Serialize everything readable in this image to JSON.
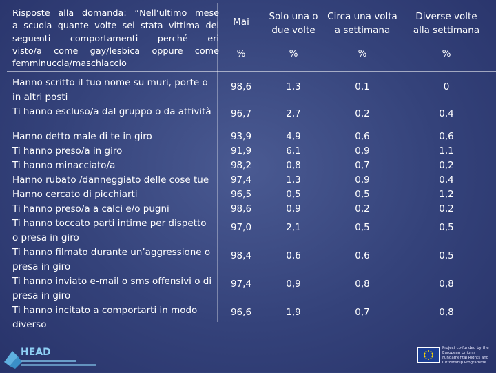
{
  "header": {
    "question": "Risposte alla domanda: “Nell’ultimo mese a scuola quante volte sei stata vittima dei seguenti comportamenti perché eri visto/a come gay/lesbica oppure come femminuccia/maschiaccio",
    "question_lines": [
      "Risposte alla domanda: “Nell’ultimo mese",
      "a scuola quante volte sei stata vittima dei",
      "seguenti comportamenti perché eri",
      "visto/a come gay/lesbica oppure come",
      "femminuccia/maschiaccio"
    ],
    "columns": [
      {
        "label_lines": [
          "Mai"
        ],
        "unit": "%"
      },
      {
        "label_lines": [
          "Solo una o",
          "due volte"
        ],
        "unit": "%"
      },
      {
        "label_lines": [
          "Circa una volta",
          "a settimana"
        ],
        "unit": "%"
      },
      {
        "label_lines": [
          "Diverse volte",
          "alla settimana"
        ],
        "unit": "%"
      }
    ]
  },
  "group1": {
    "rows": [
      {
        "label_lines": [
          "Hanno scritto il tuo nome su muri, porte o",
          "in altri posti"
        ],
        "values": [
          "98,6",
          "1,3",
          "0,1",
          "0"
        ]
      },
      {
        "label_lines": [
          "Ti hanno escluso/a dal gruppo o da attività"
        ],
        "values": [
          "96,7",
          "2,7",
          "0,2",
          "0,4"
        ]
      }
    ]
  },
  "group2": {
    "rows": [
      {
        "label_lines": [
          "Hanno detto male di te in giro"
        ],
        "values": [
          "93,9",
          "4,9",
          "0,6",
          "0,6"
        ]
      },
      {
        "label_lines": [
          "Ti hanno preso/a in giro"
        ],
        "values": [
          "91,9",
          "6,1",
          "0,9",
          "1,1"
        ]
      },
      {
        "label_lines": [
          "Ti hanno minacciato/a"
        ],
        "values": [
          "98,2",
          "0,8",
          "0,7",
          "0,2"
        ]
      },
      {
        "label_lines": [
          "Hanno rubato /danneggiato delle cose tue"
        ],
        "values": [
          "97,4",
          "1,3",
          "0,9",
          "0,4"
        ]
      },
      {
        "label_lines": [
          "Hanno cercato di picchiarti"
        ],
        "values": [
          "96,5",
          "0,5",
          "0,5",
          "1,2"
        ]
      },
      {
        "label_lines": [
          "Ti hanno preso/a a calci e/o pugni"
        ],
        "values": [
          "98,6",
          "0,9",
          "0,2",
          "0,2"
        ]
      },
      {
        "label_lines": [
          "Ti hanno toccato parti intime per dispetto",
          "o presa in giro"
        ],
        "values": [
          "97,0",
          "2,1",
          "0,5",
          "0,5"
        ]
      },
      {
        "label_lines": [
          "Ti hanno filmato durante un’aggressione o",
          "presa in giro"
        ],
        "values": [
          "98,4",
          "0,6",
          "0,6",
          "0,5"
        ]
      },
      {
        "label_lines": [
          "Ti hanno inviato e-mail o sms offensivi o di",
          "presa in giro"
        ],
        "values": [
          "97,4",
          "0,9",
          "0,8",
          "0,8"
        ]
      },
      {
        "label_lines": [
          "Ti hanno incitato a comportarti in modo",
          "diverso"
        ],
        "values": [
          "96,6",
          "1,9",
          "0,7",
          "0,8"
        ]
      }
    ]
  },
  "footer": {
    "logo_text": "HEAD",
    "eu_text_lines": [
      "Project co-funded by the",
      "European Union's",
      "Fundamental Rights and",
      "Citizenship Programme"
    ]
  },
  "colors": {
    "background": "#34427a",
    "text": "#ffffff",
    "eu_blue": "#1d3f94",
    "eu_star": "#ffdd00"
  }
}
